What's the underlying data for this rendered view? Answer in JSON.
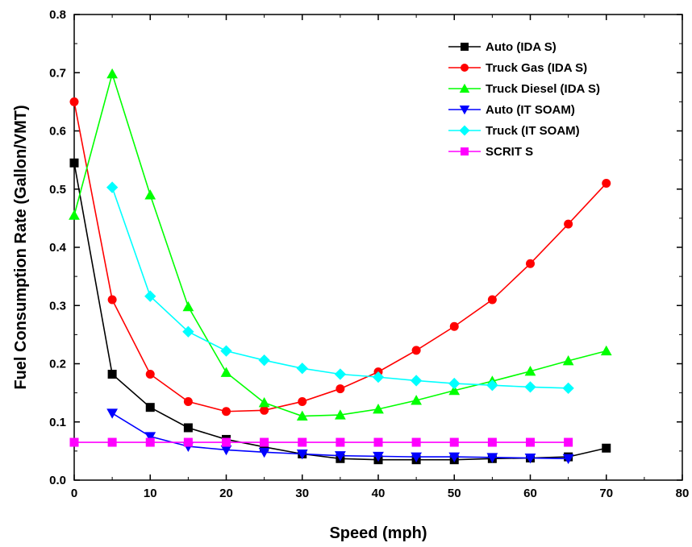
{
  "chart_data": {
    "type": "line",
    "title": "",
    "xlabel": "Speed (mph)",
    "ylabel": "Fuel Consumption Rate (Gallon/VMT)",
    "xlim": [
      0,
      80
    ],
    "ylim": [
      0.0,
      0.8
    ],
    "xticks": [
      "0",
      "10",
      "20",
      "30",
      "40",
      "50",
      "60",
      "70",
      "80"
    ],
    "yticks": [
      "0.0",
      "0.1",
      "0.2",
      "0.3",
      "0.4",
      "0.5",
      "0.6",
      "0.7",
      "0.8"
    ],
    "grid": false,
    "legend_position": "top-right",
    "series": [
      {
        "name": "Auto (IDA S)",
        "color": "#000000",
        "marker": "square",
        "x": [
          0,
          5,
          10,
          15,
          20,
          25,
          30,
          35,
          40,
          45,
          50,
          55,
          60,
          65,
          70
        ],
        "y": [
          0.545,
          0.182,
          0.125,
          0.09,
          0.07,
          0.057,
          0.045,
          0.037,
          0.035,
          0.035,
          0.035,
          0.037,
          0.038,
          0.04,
          0.055
        ]
      },
      {
        "name": "Truck Gas (IDA S)",
        "color": "#ff0000",
        "marker": "circle",
        "x": [
          0,
          5,
          10,
          15,
          20,
          25,
          30,
          35,
          40,
          45,
          50,
          55,
          60,
          65,
          70
        ],
        "y": [
          0.65,
          0.31,
          0.182,
          0.135,
          0.118,
          0.12,
          0.135,
          0.157,
          0.186,
          0.223,
          0.264,
          0.31,
          0.372,
          0.44,
          0.51
        ]
      },
      {
        "name": "Truck Diesel (IDA S)",
        "color": "#00ff00",
        "marker": "triangle-up",
        "x": [
          0,
          5,
          10,
          15,
          20,
          25,
          30,
          35,
          40,
          45,
          50,
          55,
          60,
          65,
          70
        ],
        "y": [
          0.455,
          0.698,
          0.49,
          0.298,
          0.185,
          0.133,
          0.11,
          0.112,
          0.122,
          0.137,
          0.154,
          0.17,
          0.187,
          0.205,
          0.222
        ]
      },
      {
        "name": "Auto (IT SOAM)",
        "color": "#0000ff",
        "marker": "triangle-down",
        "x": [
          5,
          10,
          15,
          20,
          25,
          30,
          35,
          40,
          45,
          50,
          55,
          60,
          65
        ],
        "y": [
          0.115,
          0.075,
          0.058,
          0.052,
          0.048,
          0.045,
          0.042,
          0.041,
          0.04,
          0.04,
          0.039,
          0.038,
          0.037
        ]
      },
      {
        "name": "Truck (IT SOAM)",
        "color": "#00ffff",
        "marker": "diamond",
        "x": [
          5,
          10,
          15,
          20,
          25,
          30,
          35,
          40,
          45,
          50,
          55,
          60,
          65
        ],
        "y": [
          0.503,
          0.316,
          0.255,
          0.222,
          0.206,
          0.192,
          0.182,
          0.177,
          0.171,
          0.166,
          0.163,
          0.16,
          0.158
        ]
      },
      {
        "name": "SCRIT S",
        "color": "#ff00ff",
        "marker": "square",
        "x": [
          0,
          5,
          10,
          15,
          20,
          25,
          30,
          35,
          40,
          45,
          50,
          55,
          60,
          65
        ],
        "y": [
          0.065,
          0.065,
          0.065,
          0.065,
          0.065,
          0.065,
          0.065,
          0.065,
          0.065,
          0.065,
          0.065,
          0.065,
          0.065,
          0.065
        ]
      }
    ]
  }
}
